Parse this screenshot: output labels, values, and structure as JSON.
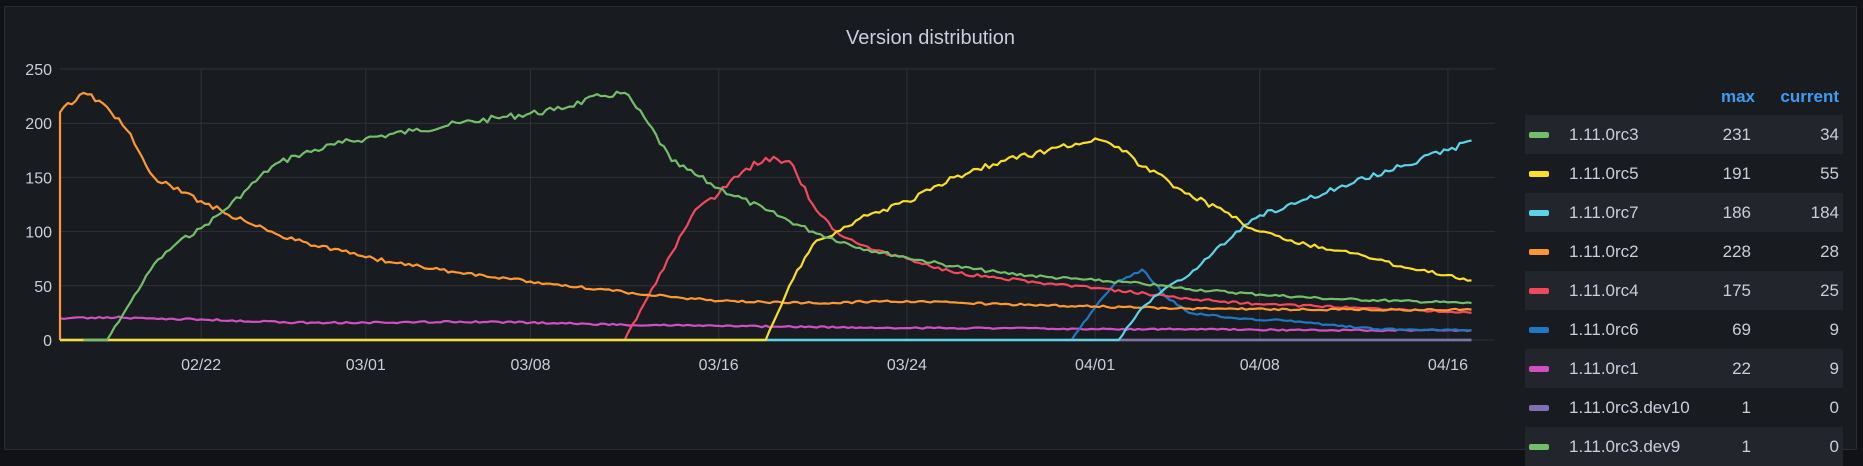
{
  "panel": {
    "title": "Version distribution",
    "legend_headers": {
      "max": "max",
      "current": "current"
    }
  },
  "chart_data": {
    "type": "line",
    "title": "Version distribution",
    "xlabel": "",
    "ylabel": "",
    "ylim": [
      0,
      250
    ],
    "xlim": [
      "02/16",
      "04/18"
    ],
    "y_ticks": [
      0,
      50,
      100,
      150,
      200,
      250
    ],
    "x_ticks": [
      "02/22",
      "03/01",
      "03/08",
      "03/16",
      "03/24",
      "04/01",
      "04/08",
      "04/16"
    ],
    "grid": true,
    "legend_position": "right",
    "series": [
      {
        "name": "1.11.0rc3",
        "color": "#73bf69",
        "max": "231",
        "current": "34",
        "points": [
          [
            "02/17",
            0
          ],
          [
            "02/18",
            0
          ],
          [
            "02/19",
            35
          ],
          [
            "02/20",
            70
          ],
          [
            "02/21",
            90
          ],
          [
            "02/22",
            103
          ],
          [
            "02/23",
            120
          ],
          [
            "02/24",
            140
          ],
          [
            "02/25",
            160
          ],
          [
            "02/26",
            170
          ],
          [
            "02/28",
            182
          ],
          [
            "03/01",
            186
          ],
          [
            "03/03",
            193
          ],
          [
            "03/05",
            200
          ],
          [
            "03/07",
            206
          ],
          [
            "03/09",
            212
          ],
          [
            "03/11",
            225
          ],
          [
            "03/12",
            228
          ],
          [
            "03/13",
            200
          ],
          [
            "03/14",
            165
          ],
          [
            "03/16",
            140
          ],
          [
            "03/18",
            120
          ],
          [
            "03/20",
            100
          ],
          [
            "03/22",
            85
          ],
          [
            "03/24",
            76
          ],
          [
            "03/26",
            68
          ],
          [
            "03/28",
            62
          ],
          [
            "03/30",
            58
          ],
          [
            "04/01",
            55
          ],
          [
            "04/03",
            52
          ],
          [
            "04/05",
            47
          ],
          [
            "04/08",
            42
          ],
          [
            "04/11",
            38
          ],
          [
            "04/14",
            36
          ],
          [
            "04/17",
            34
          ]
        ]
      },
      {
        "name": "1.11.0rc5",
        "color": "#fade2a",
        "max": "191",
        "current": "55",
        "points": [
          [
            "02/16",
            0
          ],
          [
            "03/18",
            0
          ],
          [
            "03/19",
            50
          ],
          [
            "03/20",
            88
          ],
          [
            "03/21",
            100
          ],
          [
            "03/22",
            112
          ],
          [
            "03/24",
            128
          ],
          [
            "03/26",
            150
          ],
          [
            "03/28",
            165
          ],
          [
            "03/30",
            175
          ],
          [
            "04/01",
            186
          ],
          [
            "04/02",
            178
          ],
          [
            "04/03",
            160
          ],
          [
            "04/05",
            135
          ],
          [
            "04/08",
            100
          ],
          [
            "04/10",
            88
          ],
          [
            "04/12",
            80
          ],
          [
            "04/14",
            68
          ],
          [
            "04/16",
            60
          ],
          [
            "04/17",
            55
          ]
        ]
      },
      {
        "name": "1.11.0rc7",
        "color": "#5bd3e8",
        "max": "186",
        "current": "184",
        "points": [
          [
            "02/16",
            0
          ],
          [
            "04/02",
            0
          ],
          [
            "04/03",
            30
          ],
          [
            "04/04",
            48
          ],
          [
            "04/05",
            60
          ],
          [
            "04/06",
            80
          ],
          [
            "04/07",
            100
          ],
          [
            "04/08",
            115
          ],
          [
            "04/10",
            130
          ],
          [
            "04/12",
            145
          ],
          [
            "04/14",
            160
          ],
          [
            "04/16",
            175
          ],
          [
            "04/17",
            184
          ]
        ]
      },
      {
        "name": "1.11.0rc2",
        "color": "#ff9830",
        "max": "228",
        "current": "28",
        "points": [
          [
            "02/16",
            0
          ],
          [
            "02/16",
            210
          ],
          [
            "02/17",
            228
          ],
          [
            "02/18",
            215
          ],
          [
            "02/19",
            190
          ],
          [
            "02/20",
            150
          ],
          [
            "02/22",
            128
          ],
          [
            "02/24",
            108
          ],
          [
            "02/26",
            92
          ],
          [
            "02/28",
            82
          ],
          [
            "03/02",
            72
          ],
          [
            "03/05",
            62
          ],
          [
            "03/08",
            54
          ],
          [
            "03/12",
            44
          ],
          [
            "03/16",
            36
          ],
          [
            "03/20",
            34
          ],
          [
            "03/24",
            36
          ],
          [
            "03/28",
            33
          ],
          [
            "04/01",
            31
          ],
          [
            "04/05",
            29
          ],
          [
            "04/10",
            28
          ],
          [
            "04/17",
            28
          ]
        ]
      },
      {
        "name": "1.11.0rc4",
        "color": "#f2495c",
        "max": "175",
        "current": "25",
        "points": [
          [
            "02/16",
            0
          ],
          [
            "03/12",
            0
          ],
          [
            "03/13",
            40
          ],
          [
            "03/14",
            80
          ],
          [
            "03/15",
            120
          ],
          [
            "03/16",
            135
          ],
          [
            "03/17",
            155
          ],
          [
            "03/18",
            168
          ],
          [
            "03/19",
            165
          ],
          [
            "03/20",
            125
          ],
          [
            "03/21",
            100
          ],
          [
            "03/22",
            88
          ],
          [
            "03/24",
            75
          ],
          [
            "03/26",
            62
          ],
          [
            "03/28",
            57
          ],
          [
            "03/30",
            52
          ],
          [
            "04/01",
            48
          ],
          [
            "04/05",
            38
          ],
          [
            "04/08",
            33
          ],
          [
            "04/12",
            30
          ],
          [
            "04/17",
            25
          ]
        ]
      },
      {
        "name": "1.11.0rc6",
        "color": "#1f78c1",
        "max": "69",
        "current": "9",
        "points": [
          [
            "02/16",
            0
          ],
          [
            "03/31",
            0
          ],
          [
            "04/01",
            30
          ],
          [
            "04/02",
            55
          ],
          [
            "04/03",
            65
          ],
          [
            "04/04",
            40
          ],
          [
            "04/05",
            25
          ],
          [
            "04/07",
            20
          ],
          [
            "04/09",
            18
          ],
          [
            "04/11",
            14
          ],
          [
            "04/13",
            10
          ],
          [
            "04/17",
            9
          ]
        ]
      },
      {
        "name": "1.11.0rc1",
        "color": "#d14fc2",
        "max": "22",
        "current": "9",
        "points": [
          [
            "02/16",
            20
          ],
          [
            "02/18",
            21
          ],
          [
            "02/22",
            19
          ],
          [
            "02/26",
            16
          ],
          [
            "03/01",
            16
          ],
          [
            "03/05",
            17
          ],
          [
            "03/08",
            16
          ],
          [
            "03/12",
            14
          ],
          [
            "03/16",
            13
          ],
          [
            "03/20",
            12
          ],
          [
            "03/24",
            11
          ],
          [
            "03/28",
            11
          ],
          [
            "04/01",
            10
          ],
          [
            "04/05",
            10
          ],
          [
            "04/10",
            9
          ],
          [
            "04/17",
            9
          ]
        ]
      },
      {
        "name": "1.11.0rc3.dev10",
        "color": "#806eb7",
        "max": "1",
        "current": "0",
        "points": [
          [
            "02/16",
            0
          ],
          [
            "04/17",
            0
          ]
        ]
      },
      {
        "name": "1.11.0rc3.dev9",
        "color": "#73bf69",
        "max": "1",
        "current": "0",
        "points": [
          [
            "02/16",
            0
          ],
          [
            "04/17",
            0
          ]
        ]
      },
      {
        "name": "",
        "color": "#c8a81e",
        "points": [
          [
            "02/16",
            0
          ],
          [
            "04/17",
            0
          ]
        ]
      }
    ]
  }
}
